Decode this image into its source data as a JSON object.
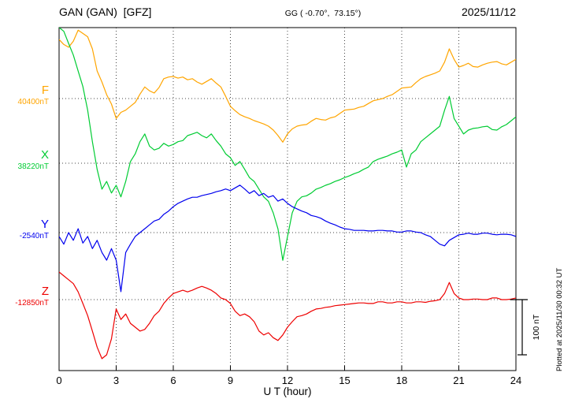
{
  "header": {
    "station_title": "GAN (GAN)  [GFZ]",
    "geo_coords": "GG ( -0.70°,  73.15°)",
    "date": "2025/11/12"
  },
  "axis": {
    "xlabel": "U T (hour)",
    "xticks": [
      0,
      3,
      6,
      9,
      12,
      15,
      18,
      21,
      24
    ],
    "xmin": 0,
    "xmax": 24
  },
  "scale_bar": {
    "label": "100 nT",
    "nT": 100
  },
  "plot_note": "Plotted at 2025/11/30 00:32 UT",
  "chart_data": {
    "type": "line",
    "title": "GAN (GAN) [GFZ] magnetogram 2025/11/12",
    "xlabel": "U T (hour)",
    "x_range": [
      0,
      24
    ],
    "x_start_hour": 0,
    "x_step_hour": 0.25,
    "units": "nT",
    "scale_bar_nT": 100,
    "grid": "dotted vertical lines every 3 h; dotted horizontal line at each component baseline",
    "legend_position": "left margin, one colored label per component",
    "series": [
      {
        "name": "F",
        "color": "#ffa500",
        "baseline_nT": 40400,
        "baseline_label": "40400nT",
        "offsets_nT": [
          107,
          98,
          93,
          104,
          124,
          118,
          112,
          90,
          50,
          30,
          7,
          -10,
          -36,
          -25,
          -21,
          -14,
          -7,
          8,
          21,
          14,
          10,
          20,
          36,
          39,
          40,
          37,
          39,
          34,
          36,
          30,
          26,
          31,
          36,
          28,
          21,
          4,
          -14,
          -22,
          -29,
          -33,
          -36,
          -40,
          -43,
          -46,
          -50,
          -57,
          -67,
          -79,
          -64,
          -55,
          -50,
          -48,
          -47,
          -41,
          -36,
          -38,
          -39,
          -35,
          -33,
          -27,
          -21,
          -20,
          -19,
          -16,
          -14,
          -9,
          -4,
          -2,
          0,
          4,
          7,
          13,
          19,
          20,
          21,
          29,
          36,
          40,
          43,
          46,
          50,
          66,
          90,
          71,
          57,
          60,
          64,
          58,
          57,
          61,
          64,
          66,
          67,
          63,
          61,
          66,
          71
        ]
      },
      {
        "name": "X",
        "color": "#00cc33",
        "baseline_nT": 38220,
        "baseline_label": "38220nT",
        "offsets_nT": [
          246,
          239,
          217,
          196,
          167,
          139,
          96,
          39,
          -11,
          -47,
          -33,
          -54,
          -40,
          -61,
          -33,
          3,
          17,
          39,
          53,
          31,
          24,
          27,
          36,
          31,
          34,
          39,
          41,
          50,
          53,
          56,
          50,
          46,
          53,
          41,
          31,
          17,
          10,
          -4,
          3,
          -11,
          -26,
          -33,
          -47,
          -61,
          -69,
          -90,
          -119,
          -176,
          -133,
          -90,
          -69,
          -61,
          -59,
          -54,
          -47,
          -44,
          -40,
          -37,
          -33,
          -30,
          -26,
          -23,
          -19,
          -16,
          -11,
          -7,
          3,
          7,
          10,
          13,
          17,
          20,
          24,
          -7,
          17,
          24,
          39,
          46,
          53,
          60,
          67,
          96,
          121,
          81,
          67,
          53,
          60,
          63,
          64,
          66,
          67,
          61,
          60,
          66,
          70,
          77,
          84
        ]
      },
      {
        "name": "Y",
        "color": "#0000ee",
        "baseline_nT": -2540,
        "baseline_label": "-2540nT",
        "offsets_nT": [
          -7,
          -21,
          0,
          -14,
          7,
          -19,
          -7,
          -29,
          -14,
          -36,
          -50,
          -29,
          -50,
          -107,
          -36,
          -21,
          -7,
          0,
          7,
          14,
          21,
          24,
          33,
          39,
          47,
          53,
          57,
          61,
          64,
          64,
          67,
          69,
          71,
          74,
          76,
          79,
          76,
          81,
          86,
          79,
          71,
          76,
          67,
          71,
          64,
          67,
          57,
          61,
          53,
          47,
          43,
          39,
          36,
          31,
          29,
          26,
          21,
          17,
          14,
          10,
          7,
          6,
          4,
          4,
          4,
          3,
          3,
          4,
          4,
          3,
          3,
          1,
          1,
          3,
          3,
          1,
          0,
          -4,
          -7,
          -14,
          -21,
          -24,
          -14,
          -9,
          -4,
          -3,
          -1,
          -3,
          -3,
          -1,
          -1,
          -3,
          -4,
          -3,
          -3,
          -4,
          -7
        ]
      },
      {
        "name": "Z",
        "color": "#ee0000",
        "baseline_nT": -12850,
        "baseline_label": "-12850nT",
        "offsets_nT": [
          50,
          43,
          36,
          29,
          14,
          -7,
          -29,
          -57,
          -86,
          -107,
          -100,
          -71,
          -17,
          -36,
          -26,
          -43,
          -50,
          -57,
          -54,
          -43,
          -29,
          -21,
          -7,
          3,
          11,
          14,
          17,
          14,
          17,
          21,
          24,
          21,
          17,
          11,
          3,
          0,
          -7,
          -21,
          -29,
          -26,
          -31,
          -40,
          -57,
          -64,
          -60,
          -69,
          -74,
          -64,
          -50,
          -40,
          -31,
          -29,
          -26,
          -21,
          -17,
          -16,
          -14,
          -13,
          -11,
          -10,
          -9,
          -8,
          -7,
          -6,
          -6,
          -7,
          -7,
          -4,
          -4,
          -6,
          -6,
          -4,
          -4,
          -6,
          -6,
          -4,
          -4,
          -5,
          -3,
          -2,
          0,
          11,
          31,
          11,
          3,
          0,
          0,
          1,
          1,
          0,
          0,
          3,
          3,
          0,
          0,
          1,
          3
        ]
      }
    ]
  }
}
